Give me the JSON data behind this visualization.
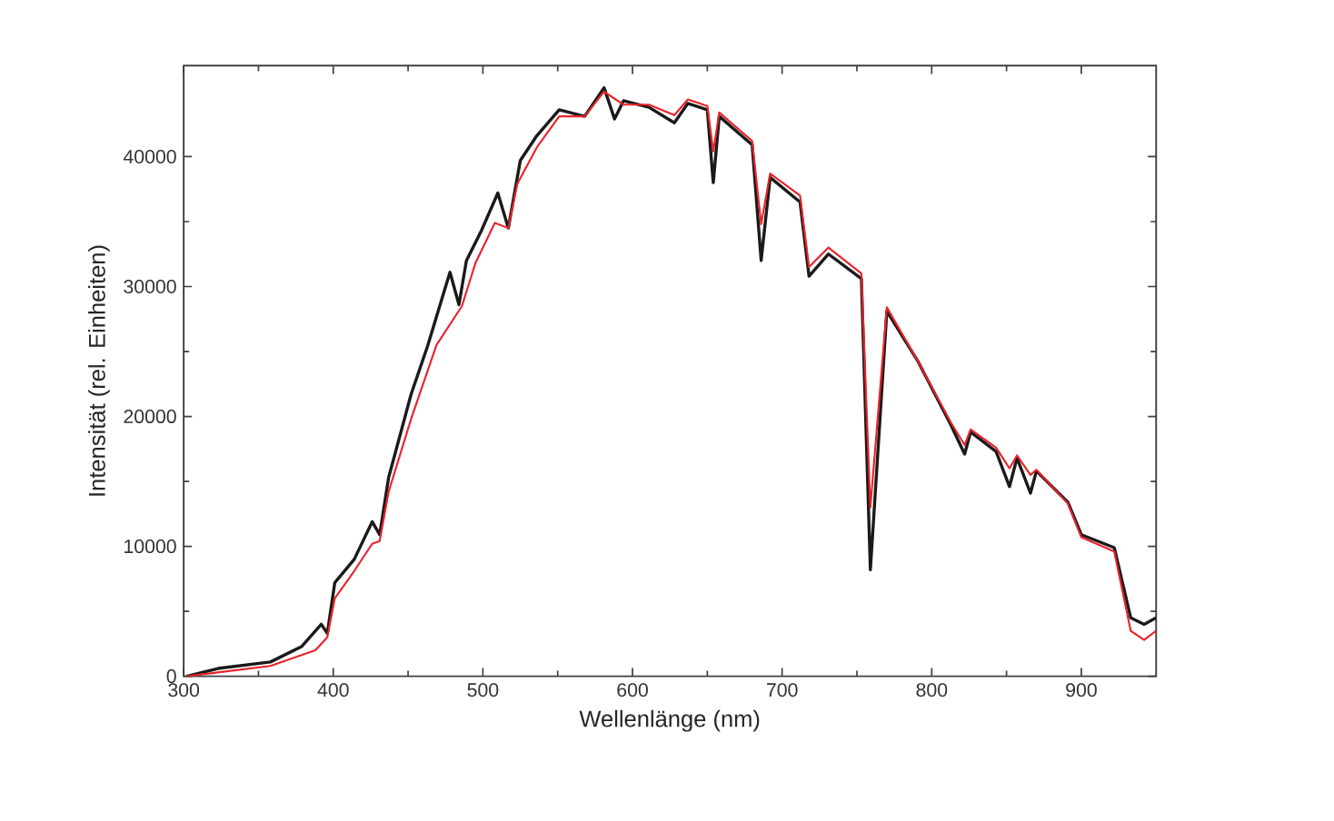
{
  "chart_data": {
    "type": "line",
    "xlabel": "Wellenlänge (nm)",
    "ylabel": "Intensität (rel. Einheiten)",
    "xlim": [
      300,
      950
    ],
    "ylim": [
      0,
      47000
    ],
    "xticks": [
      300,
      400,
      500,
      600,
      700,
      800,
      900
    ],
    "yticks": [
      0,
      10000,
      20000,
      30000,
      40000
    ],
    "grid": false,
    "legend": false,
    "marker": "none",
    "line_style": "solid",
    "series": [
      {
        "color": "#1a1a1a",
        "x": [
          302,
          323,
          358,
          379,
          392,
          396,
          401,
          414,
          426,
          431,
          437,
          452,
          463,
          478,
          484,
          489,
          499,
          510,
          517,
          525,
          536,
          551,
          568,
          581,
          588,
          594,
          611,
          628,
          637,
          650,
          654,
          658,
          680,
          686,
          692,
          712,
          718,
          731,
          753,
          759,
          770,
          791,
          813,
          822,
          826,
          843,
          852,
          857,
          866,
          870,
          891,
          900,
          922,
          933,
          942,
          950
        ],
        "values": [
          0,
          600,
          1100,
          2300,
          4000,
          3300,
          7200,
          9000,
          11900,
          10900,
          15300,
          21700,
          25400,
          31100,
          28600,
          32000,
          34300,
          37200,
          34500,
          39700,
          41600,
          43600,
          43100,
          45300,
          42900,
          44300,
          43800,
          42600,
          44100,
          43600,
          38000,
          43100,
          40900,
          32000,
          38400,
          36500,
          30800,
          32500,
          30600,
          8200,
          28100,
          24200,
          19300,
          17100,
          18800,
          17300,
          14600,
          16800,
          14100,
          15800,
          13400,
          10900,
          9900,
          4500,
          4000,
          4500
        ]
      },
      {
        "color": "#e8232a",
        "x": [
          302,
          358,
          388,
          396,
          401,
          414,
          426,
          431,
          437,
          452,
          469,
          486,
          495,
          508,
          517,
          523,
          536,
          551,
          568,
          581,
          594,
          611,
          628,
          637,
          650,
          654,
          658,
          680,
          686,
          692,
          712,
          718,
          731,
          753,
          759,
          770,
          791,
          813,
          822,
          826,
          843,
          852,
          857,
          866,
          870,
          891,
          900,
          922,
          933,
          942,
          950
        ],
        "values": [
          0,
          800,
          2000,
          3000,
          6000,
          8100,
          10200,
          10400,
          14200,
          19800,
          25500,
          28500,
          31800,
          34900,
          34500,
          37900,
          40700,
          43100,
          43100,
          45000,
          44000,
          44000,
          43200,
          44400,
          43900,
          40400,
          43400,
          41200,
          34800,
          38700,
          37000,
          31500,
          33000,
          31000,
          13000,
          28400,
          24200,
          19500,
          17800,
          19000,
          17600,
          16000,
          17000,
          15500,
          15900,
          13300,
          10700,
          9600,
          3500,
          2800,
          3500
        ]
      }
    ]
  }
}
